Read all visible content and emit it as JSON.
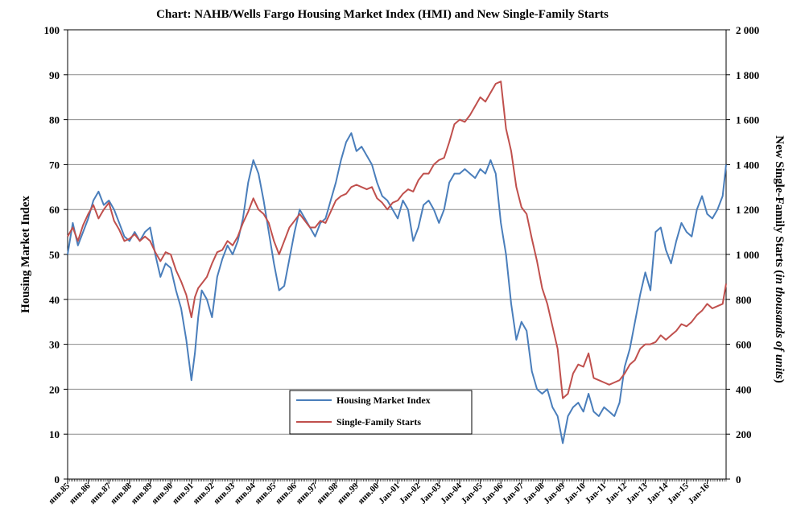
{
  "chart_data": {
    "type": "line",
    "title": "Chart:  NAHB/Wells Fargo Housing Market Index (HMI) and New Single-Family Starts",
    "ylabel_left": "Housing Market Index",
    "ylabel_right_prefix": "New Single-Family Starts (",
    "ylabel_right_italic": "in thousands of units",
    "ylabel_right_suffix": ")",
    "ylim_left": [
      0,
      100
    ],
    "ylim_right": [
      0,
      2000
    ],
    "yticks_left": [
      "0",
      "10",
      "20",
      "30",
      "40",
      "50",
      "60",
      "70",
      "80",
      "90",
      "100"
    ],
    "yticks_right": [
      "0",
      "200",
      "400",
      "600",
      "800",
      "1 000",
      "1 200",
      "1 400",
      "1 600",
      "1 800",
      "2 000"
    ],
    "xlim_years": [
      1985,
      2016.917
    ],
    "x_tick_labels": [
      "янв.85",
      "янв.86",
      "янв.87",
      "янв.88",
      "янв.89",
      "янв.90",
      "янв.91",
      "янв.92",
      "янв.93",
      "янв.94",
      "янв.95",
      "янв.96",
      "янв.97",
      "янв.98",
      "янв.99",
      "янв.00",
      "Jan-01",
      "Jan-02",
      "Jan-03",
      "Jan-04",
      "Jan-05",
      "Jan-06",
      "Jan-07",
      "Jan-08",
      "Jan-09",
      "Jan-10",
      "Jan-11",
      "Jan-12",
      "Jan-13",
      "Jan-14",
      "Jan-15",
      "Jan-16"
    ],
    "grid": true,
    "legend_position": "bottom-center",
    "series": [
      {
        "name": "Housing Market Index",
        "axis": "left",
        "color": "#4a7ebb",
        "points": [
          [
            1985.0,
            50
          ],
          [
            1985.25,
            57
          ],
          [
            1985.5,
            52
          ],
          [
            1985.75,
            55
          ],
          [
            1986.0,
            58
          ],
          [
            1986.25,
            62
          ],
          [
            1986.5,
            64
          ],
          [
            1986.75,
            61
          ],
          [
            1987.0,
            62
          ],
          [
            1987.25,
            60
          ],
          [
            1987.5,
            57
          ],
          [
            1987.75,
            54
          ],
          [
            1988.0,
            53
          ],
          [
            1988.25,
            55
          ],
          [
            1988.5,
            53
          ],
          [
            1988.75,
            55
          ],
          [
            1989.0,
            56
          ],
          [
            1989.25,
            50
          ],
          [
            1989.5,
            45
          ],
          [
            1989.75,
            48
          ],
          [
            1990.0,
            47
          ],
          [
            1990.25,
            42
          ],
          [
            1990.5,
            38
          ],
          [
            1990.75,
            31
          ],
          [
            1991.0,
            22
          ],
          [
            1991.17,
            28
          ],
          [
            1991.33,
            36
          ],
          [
            1991.5,
            42
          ],
          [
            1991.75,
            40
          ],
          [
            1992.0,
            36
          ],
          [
            1992.25,
            45
          ],
          [
            1992.5,
            49
          ],
          [
            1992.75,
            52
          ],
          [
            1993.0,
            50
          ],
          [
            1993.25,
            53
          ],
          [
            1993.5,
            58
          ],
          [
            1993.75,
            66
          ],
          [
            1994.0,
            71
          ],
          [
            1994.25,
            68
          ],
          [
            1994.5,
            62
          ],
          [
            1994.75,
            55
          ],
          [
            1995.0,
            48
          ],
          [
            1995.25,
            42
          ],
          [
            1995.5,
            43
          ],
          [
            1995.75,
            49
          ],
          [
            1996.0,
            55
          ],
          [
            1996.25,
            60
          ],
          [
            1996.5,
            58
          ],
          [
            1996.75,
            56
          ],
          [
            1997.0,
            54
          ],
          [
            1997.25,
            57
          ],
          [
            1997.5,
            58
          ],
          [
            1997.75,
            62
          ],
          [
            1998.0,
            66
          ],
          [
            1998.25,
            71
          ],
          [
            1998.5,
            75
          ],
          [
            1998.75,
            77
          ],
          [
            1999.0,
            73
          ],
          [
            1999.25,
            74
          ],
          [
            1999.5,
            72
          ],
          [
            1999.75,
            70
          ],
          [
            2000.0,
            66
          ],
          [
            2000.25,
            63
          ],
          [
            2000.5,
            62
          ],
          [
            2000.75,
            60
          ],
          [
            2001.0,
            58
          ],
          [
            2001.25,
            62
          ],
          [
            2001.5,
            60
          ],
          [
            2001.75,
            53
          ],
          [
            2002.0,
            56
          ],
          [
            2002.25,
            61
          ],
          [
            2002.5,
            62
          ],
          [
            2002.75,
            60
          ],
          [
            2003.0,
            57
          ],
          [
            2003.25,
            60
          ],
          [
            2003.5,
            66
          ],
          [
            2003.75,
            68
          ],
          [
            2004.0,
            68
          ],
          [
            2004.25,
            69
          ],
          [
            2004.5,
            68
          ],
          [
            2004.75,
            67
          ],
          [
            2005.0,
            69
          ],
          [
            2005.25,
            68
          ],
          [
            2005.5,
            71
          ],
          [
            2005.75,
            68
          ],
          [
            2006.0,
            57
          ],
          [
            2006.25,
            50
          ],
          [
            2006.5,
            39
          ],
          [
            2006.75,
            31
          ],
          [
            2007.0,
            35
          ],
          [
            2007.25,
            33
          ],
          [
            2007.5,
            24
          ],
          [
            2007.75,
            20
          ],
          [
            2008.0,
            19
          ],
          [
            2008.25,
            20
          ],
          [
            2008.5,
            16
          ],
          [
            2008.75,
            14
          ],
          [
            2009.0,
            8
          ],
          [
            2009.25,
            14
          ],
          [
            2009.5,
            16
          ],
          [
            2009.75,
            17
          ],
          [
            2010.0,
            15
          ],
          [
            2010.25,
            19
          ],
          [
            2010.5,
            15
          ],
          [
            2010.75,
            14
          ],
          [
            2011.0,
            16
          ],
          [
            2011.25,
            15
          ],
          [
            2011.5,
            14
          ],
          [
            2011.75,
            17
          ],
          [
            2012.0,
            25
          ],
          [
            2012.25,
            29
          ],
          [
            2012.5,
            35
          ],
          [
            2012.75,
            41
          ],
          [
            2013.0,
            46
          ],
          [
            2013.25,
            42
          ],
          [
            2013.5,
            55
          ],
          [
            2013.75,
            56
          ],
          [
            2014.0,
            51
          ],
          [
            2014.25,
            48
          ],
          [
            2014.5,
            53
          ],
          [
            2014.75,
            57
          ],
          [
            2015.0,
            55
          ],
          [
            2015.25,
            54
          ],
          [
            2015.5,
            60
          ],
          [
            2015.75,
            63
          ],
          [
            2016.0,
            59
          ],
          [
            2016.25,
            58
          ],
          [
            2016.5,
            60
          ],
          [
            2016.75,
            63
          ],
          [
            2016.917,
            70
          ]
        ]
      },
      {
        "name": "Single-Family Starts",
        "axis": "right",
        "color": "#c0504d",
        "points": [
          [
            1985.0,
            1080
          ],
          [
            1985.25,
            1120
          ],
          [
            1985.5,
            1060
          ],
          [
            1985.75,
            1130
          ],
          [
            1986.0,
            1180
          ],
          [
            1986.25,
            1220
          ],
          [
            1986.5,
            1160
          ],
          [
            1986.75,
            1200
          ],
          [
            1987.0,
            1230
          ],
          [
            1987.25,
            1150
          ],
          [
            1987.5,
            1110
          ],
          [
            1987.75,
            1060
          ],
          [
            1988.0,
            1070
          ],
          [
            1988.25,
            1090
          ],
          [
            1988.5,
            1060
          ],
          [
            1988.75,
            1080
          ],
          [
            1989.0,
            1060
          ],
          [
            1989.25,
            1010
          ],
          [
            1989.5,
            970
          ],
          [
            1989.75,
            1010
          ],
          [
            1990.0,
            1000
          ],
          [
            1990.25,
            930
          ],
          [
            1990.5,
            880
          ],
          [
            1990.75,
            820
          ],
          [
            1991.0,
            720
          ],
          [
            1991.17,
            810
          ],
          [
            1991.33,
            850
          ],
          [
            1991.5,
            870
          ],
          [
            1991.75,
            900
          ],
          [
            1992.0,
            960
          ],
          [
            1992.25,
            1010
          ],
          [
            1992.5,
            1020
          ],
          [
            1992.75,
            1060
          ],
          [
            1993.0,
            1040
          ],
          [
            1993.25,
            1080
          ],
          [
            1993.5,
            1140
          ],
          [
            1993.75,
            1190
          ],
          [
            1994.0,
            1250
          ],
          [
            1994.25,
            1200
          ],
          [
            1994.5,
            1180
          ],
          [
            1994.75,
            1140
          ],
          [
            1995.0,
            1060
          ],
          [
            1995.25,
            1000
          ],
          [
            1995.5,
            1060
          ],
          [
            1995.75,
            1120
          ],
          [
            1996.0,
            1150
          ],
          [
            1996.25,
            1180
          ],
          [
            1996.5,
            1150
          ],
          [
            1996.75,
            1120
          ],
          [
            1997.0,
            1120
          ],
          [
            1997.25,
            1150
          ],
          [
            1997.5,
            1140
          ],
          [
            1997.75,
            1190
          ],
          [
            1998.0,
            1240
          ],
          [
            1998.25,
            1260
          ],
          [
            1998.5,
            1270
          ],
          [
            1998.75,
            1300
          ],
          [
            1999.0,
            1310
          ],
          [
            1999.25,
            1300
          ],
          [
            1999.5,
            1290
          ],
          [
            1999.75,
            1300
          ],
          [
            2000.0,
            1250
          ],
          [
            2000.25,
            1230
          ],
          [
            2000.5,
            1200
          ],
          [
            2000.75,
            1230
          ],
          [
            2001.0,
            1240
          ],
          [
            2001.25,
            1270
          ],
          [
            2001.5,
            1290
          ],
          [
            2001.75,
            1280
          ],
          [
            2002.0,
            1330
          ],
          [
            2002.25,
            1360
          ],
          [
            2002.5,
            1360
          ],
          [
            2002.75,
            1400
          ],
          [
            2003.0,
            1420
          ],
          [
            2003.25,
            1430
          ],
          [
            2003.5,
            1500
          ],
          [
            2003.75,
            1580
          ],
          [
            2004.0,
            1600
          ],
          [
            2004.25,
            1590
          ],
          [
            2004.5,
            1620
          ],
          [
            2004.75,
            1660
          ],
          [
            2005.0,
            1700
          ],
          [
            2005.25,
            1680
          ],
          [
            2005.5,
            1720
          ],
          [
            2005.75,
            1760
          ],
          [
            2006.0,
            1770
          ],
          [
            2006.25,
            1560
          ],
          [
            2006.5,
            1460
          ],
          [
            2006.75,
            1300
          ],
          [
            2007.0,
            1210
          ],
          [
            2007.25,
            1180
          ],
          [
            2007.5,
            1070
          ],
          [
            2007.75,
            970
          ],
          [
            2008.0,
            850
          ],
          [
            2008.25,
            780
          ],
          [
            2008.5,
            680
          ],
          [
            2008.75,
            580
          ],
          [
            2009.0,
            360
          ],
          [
            2009.25,
            380
          ],
          [
            2009.5,
            470
          ],
          [
            2009.75,
            510
          ],
          [
            2010.0,
            500
          ],
          [
            2010.25,
            560
          ],
          [
            2010.5,
            450
          ],
          [
            2010.75,
            440
          ],
          [
            2011.0,
            430
          ],
          [
            2011.25,
            420
          ],
          [
            2011.5,
            430
          ],
          [
            2011.75,
            440
          ],
          [
            2012.0,
            470
          ],
          [
            2012.25,
            510
          ],
          [
            2012.5,
            530
          ],
          [
            2012.75,
            580
          ],
          [
            2013.0,
            600
          ],
          [
            2013.25,
            600
          ],
          [
            2013.5,
            610
          ],
          [
            2013.75,
            640
          ],
          [
            2014.0,
            620
          ],
          [
            2014.25,
            640
          ],
          [
            2014.5,
            660
          ],
          [
            2014.75,
            690
          ],
          [
            2015.0,
            680
          ],
          [
            2015.25,
            700
          ],
          [
            2015.5,
            730
          ],
          [
            2015.75,
            750
          ],
          [
            2016.0,
            780
          ],
          [
            2016.25,
            760
          ],
          [
            2016.5,
            770
          ],
          [
            2016.75,
            780
          ],
          [
            2016.917,
            870
          ]
        ]
      }
    ]
  }
}
